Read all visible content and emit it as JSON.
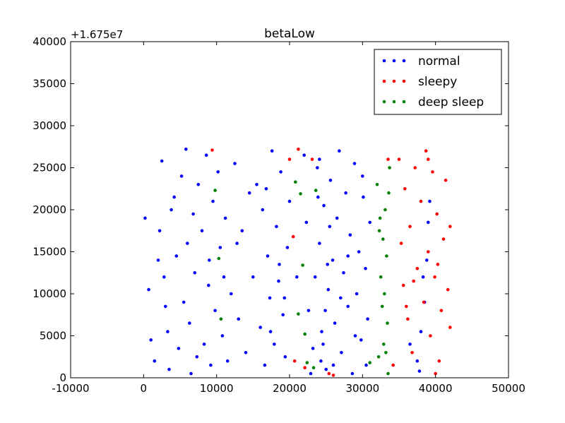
{
  "chart_data": {
    "type": "scatter",
    "title": "betaLow",
    "y_offset_label": "+1.675e7",
    "xlabel": "",
    "ylabel": "",
    "xlim": [
      -10000,
      50000
    ],
    "ylim": [
      0,
      40000
    ],
    "xticks": [
      -10000,
      0,
      10000,
      20000,
      30000,
      40000,
      50000
    ],
    "yticks": [
      0,
      5000,
      10000,
      15000,
      20000,
      25000,
      30000,
      35000,
      40000
    ],
    "legend_position": "top-right",
    "grid": false,
    "series": [
      {
        "name": "normal",
        "color": "#0000ff",
        "points": [
          [
            200,
            19000
          ],
          [
            700,
            10500
          ],
          [
            1000,
            4500
          ],
          [
            1500,
            2000
          ],
          [
            2200,
            17500
          ],
          [
            2500,
            25800
          ],
          [
            2800,
            12000
          ],
          [
            3000,
            8500
          ],
          [
            3300,
            5500
          ],
          [
            3500,
            1000
          ],
          [
            4200,
            21500
          ],
          [
            4500,
            14500
          ],
          [
            4800,
            3500
          ],
          [
            5200,
            24000
          ],
          [
            5500,
            9000
          ],
          [
            5800,
            27200
          ],
          [
            6000,
            16000
          ],
          [
            6300,
            6500
          ],
          [
            6500,
            500
          ],
          [
            6800,
            19500
          ],
          [
            7000,
            12500
          ],
          [
            7300,
            2500
          ],
          [
            7500,
            23000
          ],
          [
            8000,
            17500
          ],
          [
            8300,
            4000
          ],
          [
            8600,
            26500
          ],
          [
            8900,
            11000
          ],
          [
            9200,
            1500
          ],
          [
            9500,
            21000
          ],
          [
            9800,
            8000
          ],
          [
            10200,
            24500
          ],
          [
            10500,
            15500
          ],
          [
            10800,
            5000
          ],
          [
            11200,
            19000
          ],
          [
            11500,
            2000
          ],
          [
            12000,
            10000
          ],
          [
            12500,
            25500
          ],
          [
            13000,
            7000
          ],
          [
            13500,
            17500
          ],
          [
            14000,
            3000
          ],
          [
            15000,
            12000
          ],
          [
            15500,
            23000
          ],
          [
            16000,
            6000
          ],
          [
            16300,
            20000
          ],
          [
            16600,
            1500
          ],
          [
            17000,
            14500
          ],
          [
            17300,
            9500
          ],
          [
            17600,
            27000
          ],
          [
            17900,
            4000
          ],
          [
            18200,
            18000
          ],
          [
            18500,
            11500
          ],
          [
            18800,
            24500
          ],
          [
            19100,
            7500
          ],
          [
            19400,
            2500
          ],
          [
            19700,
            15500
          ],
          [
            20000,
            21000
          ],
          [
            22000,
            26500
          ],
          [
            22300,
            18500
          ],
          [
            22600,
            8000
          ],
          [
            23200,
            3500
          ],
          [
            23500,
            12000
          ],
          [
            23800,
            25000
          ],
          [
            24100,
            16000
          ],
          [
            24400,
            5500
          ],
          [
            24700,
            20500
          ],
          [
            25000,
            1000
          ],
          [
            25300,
            10500
          ],
          [
            25600,
            23500
          ],
          [
            25900,
            14000
          ],
          [
            26200,
            6500
          ],
          [
            26500,
            19000
          ],
          [
            26800,
            27000
          ],
          [
            27100,
            3000
          ],
          [
            27400,
            12500
          ],
          [
            27700,
            22000
          ],
          [
            28000,
            8500
          ],
          [
            28300,
            17000
          ],
          [
            28600,
            500
          ],
          [
            28900,
            25500
          ],
          [
            29200,
            10000
          ],
          [
            29500,
            15000
          ],
          [
            29800,
            4500
          ],
          [
            30100,
            21500
          ],
          [
            30400,
            13000
          ],
          [
            30700,
            7000
          ],
          [
            31000,
            18500
          ],
          [
            24300,
            2000
          ],
          [
            24600,
            4000
          ],
          [
            24900,
            8000
          ],
          [
            25200,
            13500
          ],
          [
            25500,
            18000
          ],
          [
            23900,
            21500
          ],
          [
            24100,
            26000
          ],
          [
            26000,
            1500
          ],
          [
            27000,
            9500
          ],
          [
            28000,
            14500
          ],
          [
            29000,
            5000
          ],
          [
            30000,
            24000
          ],
          [
            30500,
            1500
          ],
          [
            37500,
            2000
          ],
          [
            38000,
            5500
          ],
          [
            38500,
            9000
          ],
          [
            38800,
            14000
          ],
          [
            39000,
            18500
          ],
          [
            39200,
            21000
          ],
          [
            38300,
            12000
          ],
          [
            37800,
            800
          ],
          [
            36500,
            4000
          ],
          [
            2000,
            14000
          ],
          [
            3800,
            20000
          ],
          [
            9000,
            14000
          ],
          [
            11000,
            12000
          ],
          [
            12800,
            16000
          ],
          [
            14500,
            22000
          ],
          [
            16800,
            22500
          ],
          [
            17400,
            5500
          ],
          [
            18600,
            13500
          ],
          [
            19300,
            9500
          ],
          [
            21000,
            12000
          ],
          [
            22900,
            500
          ]
        ]
      },
      {
        "name": "sleepy",
        "color": "#ff0000",
        "points": [
          [
            9400,
            27100
          ],
          [
            20000,
            26000
          ],
          [
            20500,
            16800
          ],
          [
            20700,
            2000
          ],
          [
            21200,
            27200
          ],
          [
            22100,
            1200
          ],
          [
            23100,
            26000
          ],
          [
            25400,
            500
          ],
          [
            26000,
            300
          ],
          [
            33500,
            26000
          ],
          [
            34200,
            1500
          ],
          [
            35000,
            26000
          ],
          [
            35300,
            16000
          ],
          [
            35600,
            11000
          ],
          [
            35800,
            22500
          ],
          [
            36200,
            7000
          ],
          [
            36500,
            18000
          ],
          [
            36800,
            3000
          ],
          [
            37200,
            25000
          ],
          [
            37500,
            13000
          ],
          [
            38000,
            21000
          ],
          [
            38400,
            9000
          ],
          [
            38700,
            27000
          ],
          [
            39000,
            15000
          ],
          [
            39300,
            5000
          ],
          [
            39600,
            24500
          ],
          [
            39900,
            12000
          ],
          [
            40200,
            19500
          ],
          [
            40500,
            2000
          ],
          [
            40800,
            8000
          ],
          [
            41100,
            16500
          ],
          [
            41400,
            23500
          ],
          [
            41700,
            10500
          ],
          [
            42000,
            18000
          ],
          [
            42000,
            6000
          ],
          [
            40000,
            500
          ],
          [
            39000,
            26000
          ],
          [
            37000,
            11500
          ],
          [
            36000,
            8500
          ],
          [
            40300,
            13500
          ]
        ]
      },
      {
        "name": "deep sleep",
        "color": "#008000",
        "points": [
          [
            9800,
            22300
          ],
          [
            10300,
            14200
          ],
          [
            10600,
            7000
          ],
          [
            20800,
            23300
          ],
          [
            21200,
            7600
          ],
          [
            21500,
            21900
          ],
          [
            21800,
            13400
          ],
          [
            22100,
            5200
          ],
          [
            22400,
            1800
          ],
          [
            23300,
            1200
          ],
          [
            23600,
            22300
          ],
          [
            31000,
            1800
          ],
          [
            32000,
            23000
          ],
          [
            32300,
            17500
          ],
          [
            32500,
            12000
          ],
          [
            32700,
            8500
          ],
          [
            32900,
            4000
          ],
          [
            33100,
            20000
          ],
          [
            33300,
            14500
          ],
          [
            33500,
            500
          ],
          [
            33700,
            25000
          ],
          [
            32200,
            2500
          ],
          [
            33000,
            10000
          ],
          [
            33400,
            6500
          ],
          [
            32800,
            16500
          ],
          [
            33600,
            22000
          ],
          [
            32400,
            19000
          ],
          [
            33200,
            3000
          ]
        ]
      }
    ]
  }
}
